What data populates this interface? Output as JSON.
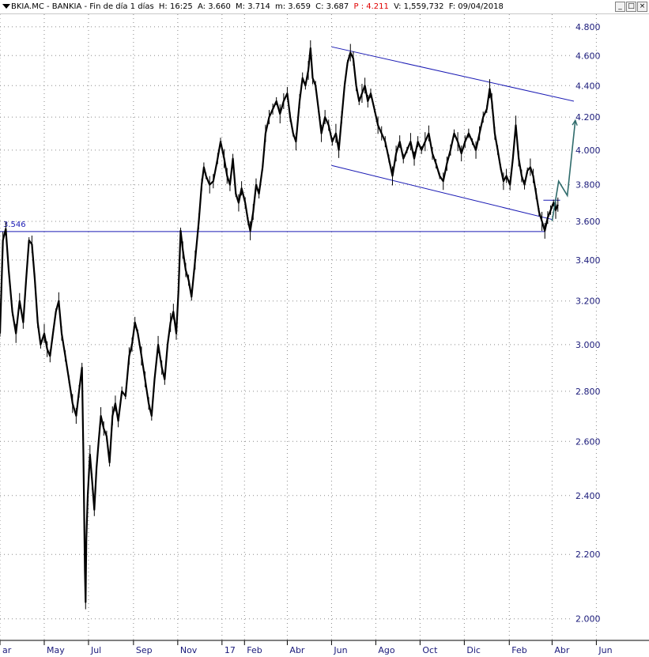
{
  "window": {
    "title_parts": [
      {
        "text": "BKIA.MC - BANKIA - Fin de día 1 días",
        "color": "#000000"
      },
      {
        "text": "H: 16:25",
        "color": "#000000"
      },
      {
        "text": "A: 3.660",
        "color": "#000000"
      },
      {
        "text": "M: 3.714",
        "color": "#000000"
      },
      {
        "text": "m: 3.659",
        "color": "#000000"
      },
      {
        "text": "C: 3.687",
        "color": "#000000"
      },
      {
        "text": "P : 4.211",
        "color": "#e00000"
      },
      {
        "text": "V: 1,559,732",
        "color": "#000000"
      },
      {
        "text": "F: 09/04/2018",
        "color": "#000000"
      }
    ],
    "buttons": {
      "minimize": "_",
      "maximize": "□",
      "close": "×"
    }
  },
  "colors": {
    "price": "#000000",
    "trendline": "#1a1ab4",
    "axis_text": "#1a1a7a",
    "grid": "#8a8a8a",
    "projection": "#2f6b6b"
  },
  "chart_data": {
    "type": "line",
    "title": "BKIA.MC - BANKIA - Fin de día 1 días",
    "y_scale": "log",
    "ylim": [
      1.96,
      4.85
    ],
    "xlim": [
      "2016-03-01",
      "2018-06-30"
    ],
    "y_ticks": [
      "4.800",
      "4.600",
      "4.400",
      "4.200",
      "4.000",
      "3.800",
      "3.600",
      "3.400",
      "3.200",
      "3.000",
      "2.800",
      "2.600",
      "2.400",
      "2.200",
      "2.000"
    ],
    "x_ticks": [
      {
        "label": "ar",
        "date": "2016-03-01"
      },
      {
        "label": "May",
        "date": "2016-05-01"
      },
      {
        "label": "Jul",
        "date": "2016-07-01"
      },
      {
        "label": "Sep",
        "date": "2016-09-01"
      },
      {
        "label": "Nov",
        "date": "2016-11-01"
      },
      {
        "label": "17",
        "date": "2017-01-01"
      },
      {
        "label": "Feb",
        "date": "2017-02-01"
      },
      {
        "label": "Abr",
        "date": "2017-04-01"
      },
      {
        "label": "Jun",
        "date": "2017-06-01"
      },
      {
        "label": "Ago",
        "date": "2017-08-01"
      },
      {
        "label": "Oct",
        "date": "2017-10-01"
      },
      {
        "label": "Dic",
        "date": "2017-12-01"
      },
      {
        "label": "Feb",
        "date": "2018-02-01"
      },
      {
        "label": "Abr",
        "date": "2018-04-01"
      },
      {
        "label": "Jun",
        "date": "2018-06-01"
      }
    ],
    "series": [
      {
        "values": [
          [
            "2016-03-01",
            3.05
          ],
          [
            "2016-03-05",
            3.5
          ],
          [
            "2016-03-09",
            3.56
          ],
          [
            "2016-03-13",
            3.35
          ],
          [
            "2016-03-18",
            3.15
          ],
          [
            "2016-03-23",
            3.05
          ],
          [
            "2016-03-28",
            3.2
          ],
          [
            "2016-04-02",
            3.1
          ],
          [
            "2016-04-06",
            3.3
          ],
          [
            "2016-04-10",
            3.5
          ],
          [
            "2016-04-14",
            3.48
          ],
          [
            "2016-04-18",
            3.3
          ],
          [
            "2016-04-22",
            3.1
          ],
          [
            "2016-04-26",
            3.0
          ],
          [
            "2016-05-01",
            3.05
          ],
          [
            "2016-05-05",
            2.98
          ],
          [
            "2016-05-09",
            2.95
          ],
          [
            "2016-05-13",
            3.05
          ],
          [
            "2016-05-17",
            3.15
          ],
          [
            "2016-05-21",
            3.2
          ],
          [
            "2016-05-25",
            3.05
          ],
          [
            "2016-05-30",
            2.95
          ],
          [
            "2016-06-04",
            2.85
          ],
          [
            "2016-06-09",
            2.75
          ],
          [
            "2016-06-14",
            2.7
          ],
          [
            "2016-06-18",
            2.8
          ],
          [
            "2016-06-22",
            2.9
          ],
          [
            "2016-06-24",
            2.55
          ],
          [
            "2016-06-26",
            2.15
          ],
          [
            "2016-06-27",
            2.05
          ],
          [
            "2016-06-28",
            2.25
          ],
          [
            "2016-06-30",
            2.4
          ],
          [
            "2016-07-03",
            2.55
          ],
          [
            "2016-07-06",
            2.45
          ],
          [
            "2016-07-09",
            2.35
          ],
          [
            "2016-07-12",
            2.5
          ],
          [
            "2016-07-15",
            2.6
          ],
          [
            "2016-07-18",
            2.7
          ],
          [
            "2016-07-22",
            2.65
          ],
          [
            "2016-07-26",
            2.62
          ],
          [
            "2016-07-30",
            2.52
          ],
          [
            "2016-08-03",
            2.7
          ],
          [
            "2016-08-07",
            2.75
          ],
          [
            "2016-08-11",
            2.68
          ],
          [
            "2016-08-16",
            2.8
          ],
          [
            "2016-08-21",
            2.78
          ],
          [
            "2016-08-26",
            2.95
          ],
          [
            "2016-08-30",
            3.0
          ],
          [
            "2016-09-03",
            3.1
          ],
          [
            "2016-09-07",
            3.05
          ],
          [
            "2016-09-12",
            2.95
          ],
          [
            "2016-09-17",
            2.85
          ],
          [
            "2016-09-22",
            2.75
          ],
          [
            "2016-09-26",
            2.7
          ],
          [
            "2016-09-30",
            2.85
          ],
          [
            "2016-10-05",
            3.0
          ],
          [
            "2016-10-10",
            2.9
          ],
          [
            "2016-10-14",
            2.85
          ],
          [
            "2016-10-18",
            3.0
          ],
          [
            "2016-10-22",
            3.1
          ],
          [
            "2016-10-26",
            3.15
          ],
          [
            "2016-10-30",
            3.05
          ],
          [
            "2016-11-02",
            3.25
          ],
          [
            "2016-11-05",
            3.55
          ],
          [
            "2016-11-08",
            3.45
          ],
          [
            "2016-11-12",
            3.35
          ],
          [
            "2016-11-16",
            3.3
          ],
          [
            "2016-11-20",
            3.22
          ],
          [
            "2016-11-25",
            3.4
          ],
          [
            "2016-11-30",
            3.6
          ],
          [
            "2016-12-04",
            3.8
          ],
          [
            "2016-12-07",
            3.9
          ],
          [
            "2016-12-10",
            3.85
          ],
          [
            "2016-12-15",
            3.8
          ],
          [
            "2016-12-20",
            3.82
          ],
          [
            "2016-12-26",
            3.95
          ],
          [
            "2016-12-30",
            4.05
          ],
          [
            "2017-01-04",
            3.95
          ],
          [
            "2017-01-08",
            3.85
          ],
          [
            "2017-01-12",
            3.8
          ],
          [
            "2017-01-16",
            3.95
          ],
          [
            "2017-01-20",
            3.75
          ],
          [
            "2017-01-24",
            3.7
          ],
          [
            "2017-01-28",
            3.78
          ],
          [
            "2017-02-02",
            3.7
          ],
          [
            "2017-02-06",
            3.6
          ],
          [
            "2017-02-09",
            3.55
          ],
          [
            "2017-02-13",
            3.65
          ],
          [
            "2017-02-17",
            3.8
          ],
          [
            "2017-02-21",
            3.75
          ],
          [
            "2017-02-26",
            3.9
          ],
          [
            "2017-03-02",
            4.1
          ],
          [
            "2017-03-07",
            4.2
          ],
          [
            "2017-03-12",
            4.25
          ],
          [
            "2017-03-17",
            4.3
          ],
          [
            "2017-03-22",
            4.22
          ],
          [
            "2017-03-27",
            4.3
          ],
          [
            "2017-04-01",
            4.35
          ],
          [
            "2017-04-05",
            4.2
          ],
          [
            "2017-04-09",
            4.1
          ],
          [
            "2017-04-13",
            4.05
          ],
          [
            "2017-04-18",
            4.3
          ],
          [
            "2017-04-22",
            4.45
          ],
          [
            "2017-04-26",
            4.4
          ],
          [
            "2017-04-30",
            4.5
          ],
          [
            "2017-05-03",
            4.65
          ],
          [
            "2017-05-06",
            4.45
          ],
          [
            "2017-05-10",
            4.4
          ],
          [
            "2017-05-14",
            4.25
          ],
          [
            "2017-05-18",
            4.1
          ],
          [
            "2017-05-23",
            4.2
          ],
          [
            "2017-05-28",
            4.15
          ],
          [
            "2017-06-02",
            4.05
          ],
          [
            "2017-06-07",
            4.1
          ],
          [
            "2017-06-11",
            4.0
          ],
          [
            "2017-06-15",
            4.2
          ],
          [
            "2017-06-19",
            4.4
          ],
          [
            "2017-06-23",
            4.55
          ],
          [
            "2017-06-27",
            4.62
          ],
          [
            "2017-07-01",
            4.58
          ],
          [
            "2017-07-05",
            4.4
          ],
          [
            "2017-07-09",
            4.3
          ],
          [
            "2017-07-13",
            4.35
          ],
          [
            "2017-07-17",
            4.4
          ],
          [
            "2017-07-21",
            4.3
          ],
          [
            "2017-07-25",
            4.35
          ],
          [
            "2017-07-30",
            4.25
          ],
          [
            "2017-08-04",
            4.15
          ],
          [
            "2017-08-09",
            4.1
          ],
          [
            "2017-08-14",
            4.05
          ],
          [
            "2017-08-19",
            3.95
          ],
          [
            "2017-08-24",
            3.85
          ],
          [
            "2017-08-29",
            3.98
          ],
          [
            "2017-09-03",
            4.05
          ],
          [
            "2017-09-08",
            3.95
          ],
          [
            "2017-09-13",
            4.0
          ],
          [
            "2017-09-18",
            4.05
          ],
          [
            "2017-09-23",
            3.95
          ],
          [
            "2017-09-28",
            4.05
          ],
          [
            "2017-10-03",
            4.0
          ],
          [
            "2017-10-08",
            4.05
          ],
          [
            "2017-10-13",
            4.1
          ],
          [
            "2017-10-18",
            3.98
          ],
          [
            "2017-10-23",
            3.92
          ],
          [
            "2017-10-28",
            3.85
          ],
          [
            "2017-11-02",
            3.82
          ],
          [
            "2017-11-07",
            3.92
          ],
          [
            "2017-11-12",
            4.0
          ],
          [
            "2017-11-17",
            4.1
          ],
          [
            "2017-11-22",
            4.05
          ],
          [
            "2017-11-27",
            3.98
          ],
          [
            "2017-12-02",
            4.05
          ],
          [
            "2017-12-07",
            4.1
          ],
          [
            "2017-12-12",
            4.05
          ],
          [
            "2017-12-17",
            4.0
          ],
          [
            "2017-12-22",
            4.1
          ],
          [
            "2017-12-27",
            4.2
          ],
          [
            "2018-01-01",
            4.25
          ],
          [
            "2018-01-05",
            4.38
          ],
          [
            "2018-01-08",
            4.3
          ],
          [
            "2018-01-12",
            4.1
          ],
          [
            "2018-01-16",
            4.0
          ],
          [
            "2018-01-20",
            3.9
          ],
          [
            "2018-01-24",
            3.82
          ],
          [
            "2018-01-28",
            3.85
          ],
          [
            "2018-02-02",
            3.8
          ],
          [
            "2018-02-06",
            3.95
          ],
          [
            "2018-02-10",
            4.15
          ],
          [
            "2018-02-14",
            3.95
          ],
          [
            "2018-02-18",
            3.85
          ],
          [
            "2018-02-22",
            3.8
          ],
          [
            "2018-02-26",
            3.88
          ],
          [
            "2018-03-02",
            3.9
          ],
          [
            "2018-03-06",
            3.85
          ],
          [
            "2018-03-10",
            3.75
          ],
          [
            "2018-03-14",
            3.65
          ],
          [
            "2018-03-18",
            3.6
          ],
          [
            "2018-03-22",
            3.55
          ],
          [
            "2018-03-26",
            3.62
          ],
          [
            "2018-03-30",
            3.66
          ],
          [
            "2018-04-03",
            3.7
          ],
          [
            "2018-04-06",
            3.66
          ],
          [
            "2018-04-09",
            3.69
          ]
        ]
      }
    ],
    "support_line": {
      "label": "3.546",
      "y": 3.546
    },
    "channel": {
      "upper": [
        [
          "2017-06-01",
          4.66
        ],
        [
          "2018-05-01",
          4.3
        ]
      ],
      "lower": [
        [
          "2017-06-01",
          3.91
        ],
        [
          "2018-04-01",
          3.61
        ]
      ]
    },
    "resistance_stub": {
      "y": 3.714,
      "from": "2018-03-20",
      "to": "2018-04-12"
    },
    "projection": [
      [
        "2018-04-01",
        3.6
      ],
      [
        "2018-04-10",
        3.82
      ],
      [
        "2018-04-22",
        3.74
      ],
      [
        "2018-05-03",
        4.18
      ]
    ]
  }
}
